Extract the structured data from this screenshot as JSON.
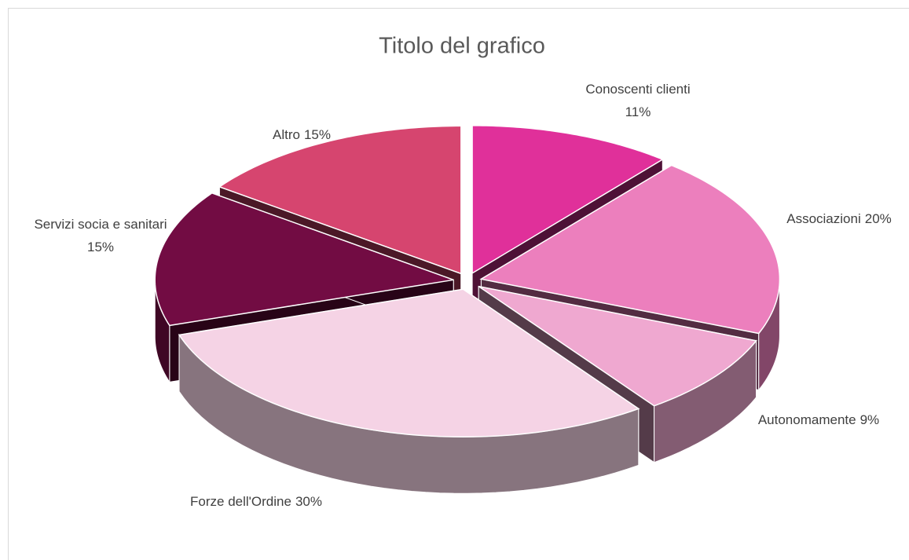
{
  "chart_data": {
    "type": "pie",
    "title": "Titolo del grafico",
    "categories": [
      "Conoscenti clienti",
      "Associazioni",
      "Autonomamente",
      "Forze dell'Ordine",
      "Servizi socia e sanitari",
      "Altro"
    ],
    "values": [
      11,
      20,
      9,
      30,
      15,
      15
    ],
    "value_labels": [
      "11%",
      "20%",
      "9%",
      "30%",
      "15%",
      "15%"
    ],
    "colors": [
      "#e0309a",
      "#ec7fbd",
      "#efa8d0",
      "#f5d3e5",
      "#720c43",
      "#d6456f"
    ]
  }
}
